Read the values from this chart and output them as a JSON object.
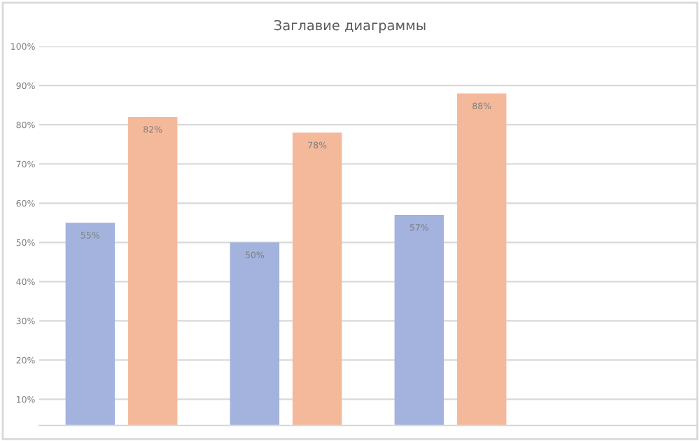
{
  "chart_data": {
    "type": "bar",
    "title": "Заглавие диаграммы",
    "categories": [
      null,
      null,
      null,
      null
    ],
    "series": [
      {
        "color": "#a3b3de",
        "values": [
          55,
          50,
          57,
          null
        ],
        "value_labels": [
          "55%",
          "50%",
          "57%",
          null
        ]
      },
      {
        "color": "#f4b99b",
        "values": [
          82,
          78,
          88,
          null
        ],
        "value_labels": [
          "82%",
          "78%",
          "88%",
          null
        ]
      }
    ],
    "ylim": [
      3.3,
      100
    ],
    "yticks": [
      {
        "value": 10,
        "label": "10%"
      },
      {
        "value": 20,
        "label": "20%"
      },
      {
        "value": 30,
        "label": "30%"
      },
      {
        "value": 40,
        "label": "40%"
      },
      {
        "value": 50,
        "label": "50%"
      },
      {
        "value": 60,
        "label": "60%"
      },
      {
        "value": 70,
        "label": "70%"
      },
      {
        "value": 80,
        "label": "80%"
      },
      {
        "value": 90,
        "label": "90%"
      },
      {
        "value": 100,
        "label": "100%"
      }
    ],
    "grid": "y",
    "legend": false
  }
}
